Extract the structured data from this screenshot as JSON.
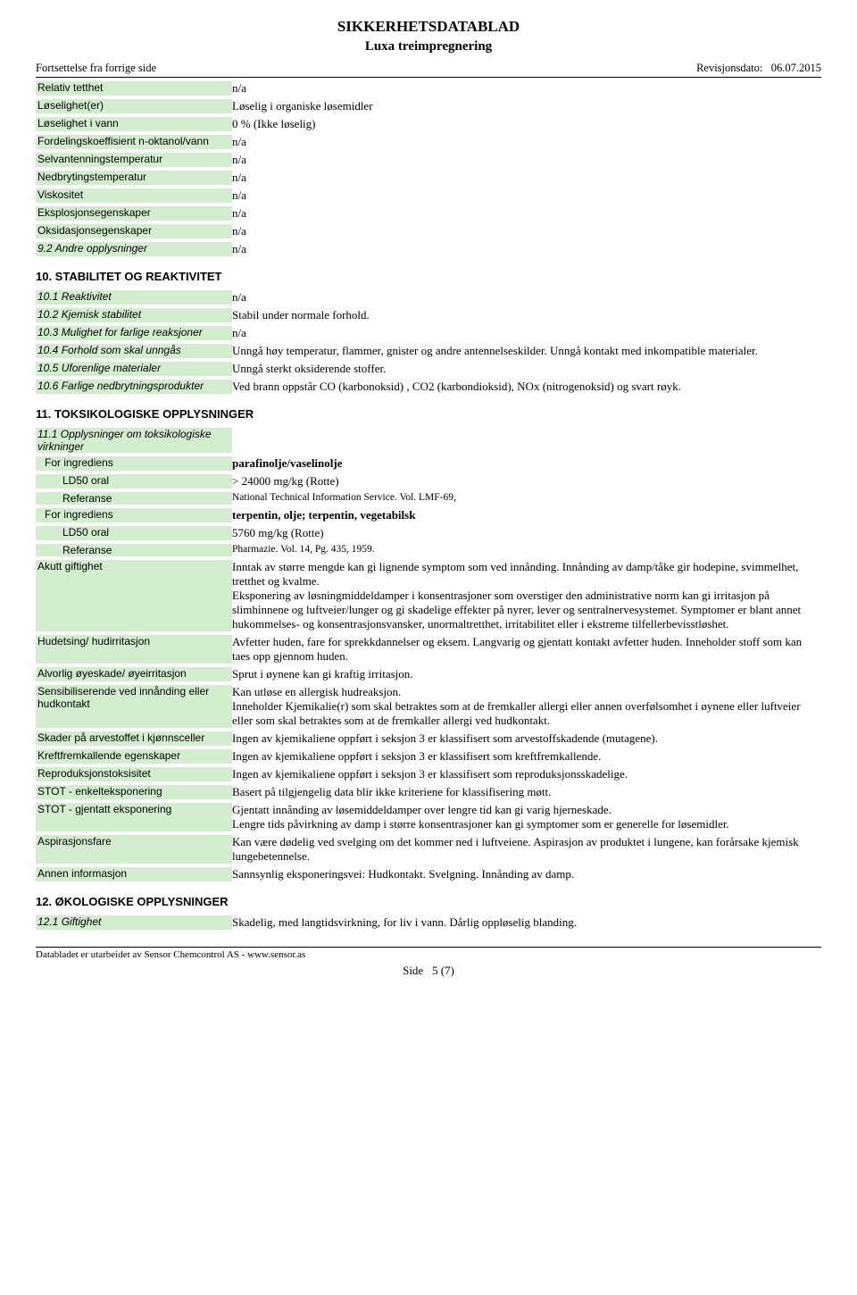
{
  "header": {
    "title": "SIKKERHETSDATABLAD",
    "product": "Luxa treimpregnering",
    "continuation": "Fortsettelse fra forrige side",
    "revision_label": "Revisjonsdato:",
    "revision_date": "06.07.2015"
  },
  "top_props": [
    {
      "label": "Relativ tetthet",
      "value": "n/a"
    },
    {
      "label": "Løselighet(er)",
      "value": "Løselig i organiske løsemidler"
    },
    {
      "label": "Løselighet i vann",
      "value": "0 % (Ikke løselig)"
    },
    {
      "label": "Fordelingskoeffisient n-oktanol/vann",
      "value": " n/a"
    },
    {
      "label": "Selvantenningstemperatur",
      "value": "n/a"
    },
    {
      "label": "Nedbrytingstemperatur",
      "value": "n/a"
    },
    {
      "label": "Viskositet",
      "value": "n/a"
    },
    {
      "label": "Eksplosjonsegenskaper",
      "value": "n/a"
    },
    {
      "label": "Oksidasjonsegenskaper",
      "value": "n/a"
    },
    {
      "label": "9.2 Andre opplysninger",
      "value": "n/a",
      "italic": true
    }
  ],
  "sec10": {
    "heading": "10. STABILITET OG REAKTIVITET",
    "rows": [
      {
        "label": "10.1 Reaktivitet",
        "value": "n/a"
      },
      {
        "label": "10.2 Kjemisk stabilitet",
        "value": "Stabil under normale forhold."
      },
      {
        "label": "10.3 Mulighet for farlige reaksjoner",
        "value": "n/a"
      },
      {
        "label": "10.4 Forhold som skal unngås",
        "value": "Unngå høy temperatur, flammer, gnister og andre antennelseskilder. Unngå kontakt med inkompatible materialer."
      },
      {
        "label": "10.5 Uforenlige materialer",
        "value": "Unngå sterkt oksiderende stoffer."
      },
      {
        "label": "10.6 Farlige nedbrytningsprodukter",
        "value": "Ved brann oppstår CO (karbonoksid) , CO2 (karbondioksid), NOx (nitrogenoksid) og svart røyk."
      }
    ]
  },
  "sec11": {
    "heading": "11. TOKSIKOLOGISKE OPPLYSNINGER",
    "sub_head": "11.1 Opplysninger om toksikologiske virkninger",
    "ing1": {
      "for": "For ingrediens",
      "name": "parafinolje/vaselinolje",
      "ld50_label": "LD50 oral",
      "ld50_val": "> 24000 mg/kg  (Rotte)",
      "ref_label": "Referanse",
      "ref_val": "National Technical Information Service. Vol. LMF-69,"
    },
    "ing2": {
      "for": "For ingrediens",
      "name": "terpentin, olje; terpentin, vegetabilsk",
      "ld50_label": "LD50 oral",
      "ld50_val": "5760 mg/kg  (Rotte)",
      "ref_label": "Referanse",
      "ref_val": "Pharmazie. Vol. 14, Pg. 435, 1959."
    },
    "rows": [
      {
        "label": "Akutt giftighet",
        "value": "Inntak av større mengde kan gi lignende symptom som ved innånding. Innånding av damp/tåke gir hodepine, svimmelhet, tretthet og kvalme.\nEksponering av løsningmiddeldamper i konsentrasjoner som overstiger den administrative norm kan gi irritasjon på slimhinnene og luftveier/lunger og gi skadelige effekter på nyrer, lever og sentralnervesystemet. Symptomer er blant annet hukommelses- og konsentrasjonsvansker, unormaltretthet, irritabilitet eller i ekstreme tilfellerbevisstløshet."
      },
      {
        "label": "Hudetsing/ hudirritasjon",
        "value": "Avfetter huden, fare for sprekkdannelser og eksem. Langvarig og gjentatt kontakt avfetter huden. Inneholder stoff som kan taes opp gjennom huden."
      },
      {
        "label": "Alvorlig øyeskade/ øyeirritasjon",
        "value": "Sprut i øynene kan gi kraftig irritasjon."
      },
      {
        "label": "Sensibiliserende ved innånding eller hudkontakt",
        "value": "Kan utløse en allergisk hudreaksjon.\nInneholder Kjemikalie(r) som skal betraktes som at de fremkaller allergi eller annen overfølsomhet i øynene eller luftveier eller som skal betraktes som at de fremkaller allergi ved hudkontakt."
      },
      {
        "label": "Skader på arvestoffet i kjønnsceller",
        "value": "Ingen av kjemikaliene oppført i seksjon 3 er klassifisert som arvestoffskadende (mutagene)."
      },
      {
        "label": "Kreftfremkallende egenskaper",
        "value": "Ingen av kjemikaliene oppført i seksjon 3 er klassifisert som kreftfremkallende."
      },
      {
        "label": "Reproduksjonstoksisitet",
        "value": "Ingen av kjemikaliene oppført i seksjon 3 er klassifisert som reproduksjonsskadelige."
      },
      {
        "label": "STOT - enkelteksponering",
        "value": "Basert på tilgjengelig data blir ikke kriteriene for klassifisering møtt."
      },
      {
        "label": "STOT - gjentatt eksponering",
        "value": "Gjentatt innånding av løsemiddeldamper over lengre tid kan gi varig hjerneskade.\nLengre tids påvirkning av damp i større konsentrasjoner kan gi symptomer som er generelle for løsemidler."
      },
      {
        "label": "Aspirasjonsfare",
        "value": "Kan være dødelig ved svelging om det kommer ned i luftveiene. Aspirasjon av produktet i lungene, kan forårsake kjemisk lungebetennelse."
      },
      {
        "label": "Annen informasjon",
        "value": "Sannsynlig eksponeringsvei: Hudkontakt. Svelgning. Innånding av damp."
      }
    ]
  },
  "sec12": {
    "heading": "12. ØKOLOGISKE OPPLYSNINGER",
    "rows": [
      {
        "label": "12.1 Giftighet",
        "value": "Skadelig, med langtidsvirkning, for liv i vann. Dårlig oppløselig blanding."
      }
    ]
  },
  "footer": {
    "note": "Databladet er utarbeidet av Sensor Chemcontrol AS - www.sensor.as",
    "page_label": "Side",
    "page_num": "5 (7)"
  }
}
